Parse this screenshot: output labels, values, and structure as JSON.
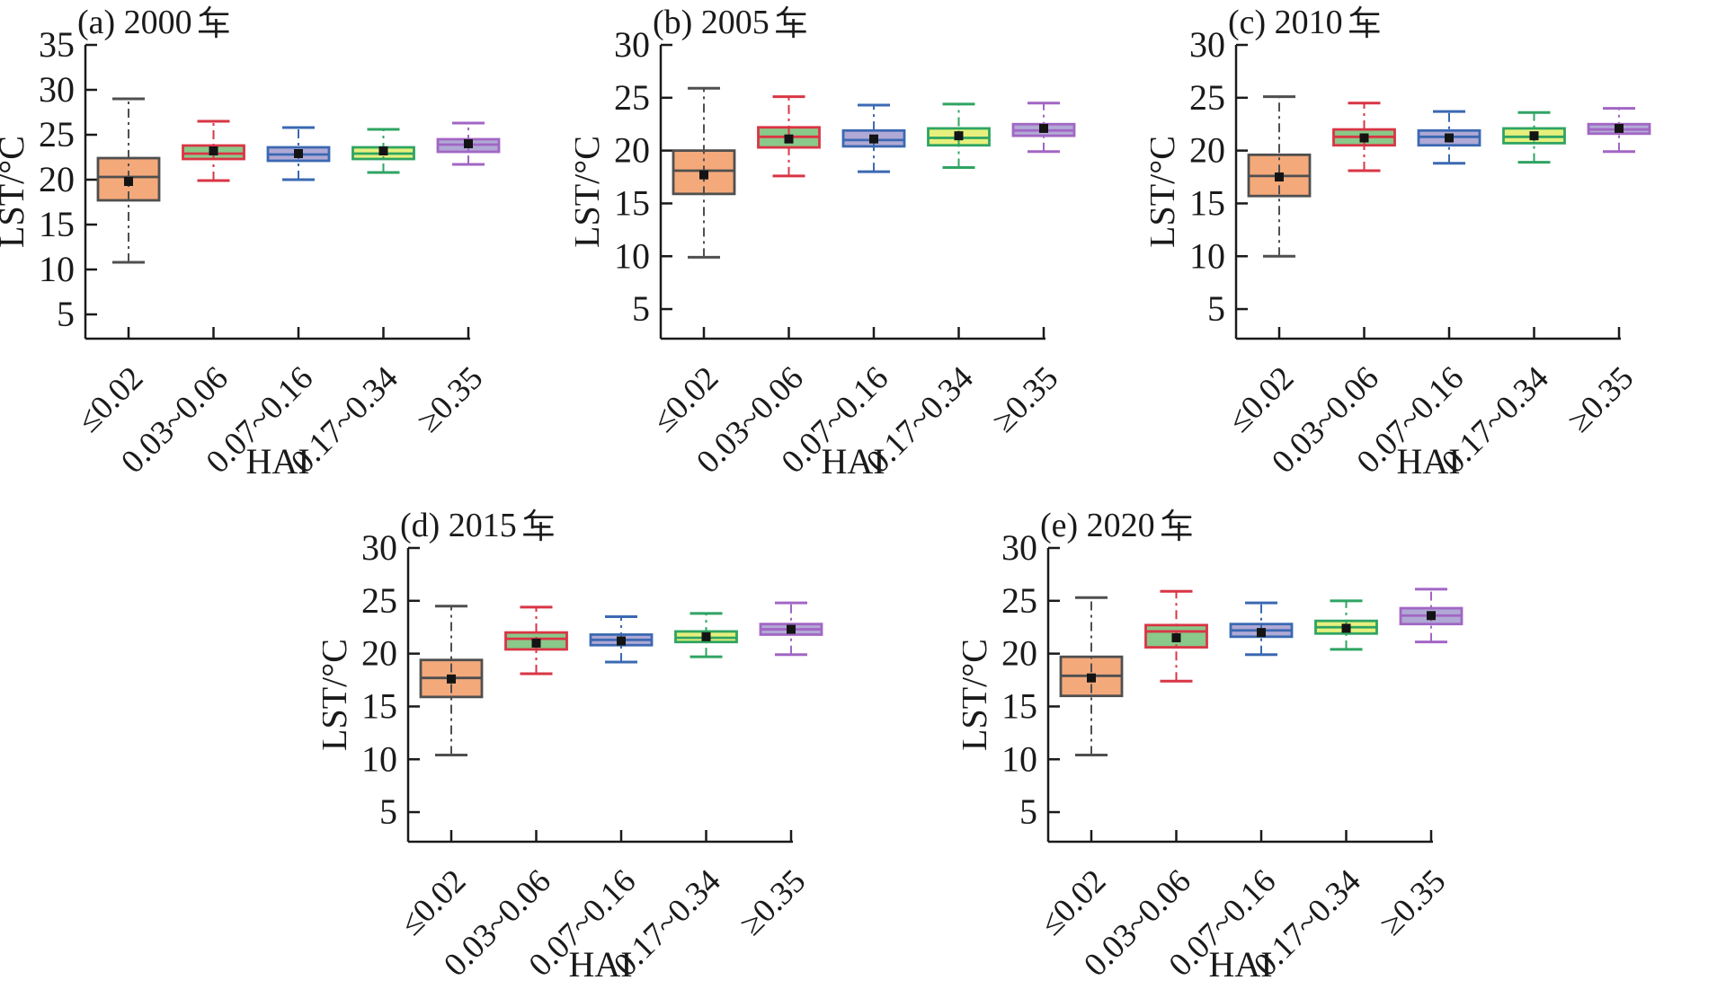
{
  "figure": {
    "background": "#ffffff",
    "text_color": "#1a1a1a",
    "style_notes": {
      "mean_marker": "small black filled square",
      "median": "horizontal line drawn in box border color",
      "whiskers": "dash-dot vertical line with solid end caps",
      "tick_direction": "inward"
    }
  },
  "palette": [
    {
      "name": "orange-box-gray-border",
      "fill": "#F4A97B",
      "stroke": "#4F4F4F"
    },
    {
      "name": "green-box-red-border",
      "fill": "#89C989",
      "stroke": "#D93545"
    },
    {
      "name": "lavender-box-blue-border",
      "fill": "#B0A9D5",
      "stroke": "#3B69B2"
    },
    {
      "name": "yellow-box-green-border",
      "fill": "#E7F07D",
      "stroke": "#2FA463"
    },
    {
      "name": "lavender-box-purple-border",
      "fill": "#B0A9D5",
      "stroke": "#A266C4"
    }
  ],
  "chart_data": [
    {
      "type": "box",
      "panel_label": "(a)",
      "title": "(a) 2000年",
      "xlabel": "HAI",
      "ylabel": "LST/°C",
      "categories": [
        "≤0.02",
        "0.03~0.06",
        "0.07~0.16",
        "0.17~0.34",
        "≥0.35"
      ],
      "ylim": [
        2.3,
        35
      ],
      "yticks": [
        5,
        10,
        15,
        20,
        25,
        30,
        35
      ],
      "boxes": [
        {
          "category": "≤0.02",
          "whisker_low": 10.8,
          "q1": 17.7,
          "median": 20.3,
          "mean": 19.8,
          "q3": 22.4,
          "whisker_high": 29.0
        },
        {
          "category": "0.03~0.06",
          "whisker_low": 19.9,
          "q1": 22.3,
          "median": 22.9,
          "mean": 23.2,
          "q3": 23.8,
          "whisker_high": 26.5
        },
        {
          "category": "0.07~0.16",
          "whisker_low": 20.0,
          "q1": 22.1,
          "median": 22.8,
          "mean": 22.9,
          "q3": 23.6,
          "whisker_high": 25.8
        },
        {
          "category": "0.17~0.34",
          "whisker_low": 20.8,
          "q1": 22.3,
          "median": 22.9,
          "mean": 23.2,
          "q3": 23.6,
          "whisker_high": 25.6
        },
        {
          "category": "≥0.35",
          "whisker_low": 21.7,
          "q1": 23.1,
          "median": 23.9,
          "mean": 24.0,
          "q3": 24.5,
          "whisker_high": 26.3
        }
      ]
    },
    {
      "type": "box",
      "panel_label": "(b)",
      "title": "(b) 2005年",
      "xlabel": "HAI",
      "ylabel": "LST/°C",
      "categories": [
        "≤0.02",
        "0.03~0.06",
        "0.07~0.16",
        "0.17~0.34",
        "≥0.35"
      ],
      "ylim": [
        2.2,
        30
      ],
      "yticks": [
        5,
        10,
        15,
        20,
        25,
        30
      ],
      "boxes": [
        {
          "category": "≤0.02",
          "whisker_low": 9.9,
          "q1": 15.9,
          "median": 18.1,
          "mean": 17.7,
          "q3": 20.0,
          "whisker_high": 25.9
        },
        {
          "category": "0.03~0.06",
          "whisker_low": 17.6,
          "q1": 20.3,
          "median": 21.3,
          "mean": 21.1,
          "q3": 22.2,
          "whisker_high": 25.1
        },
        {
          "category": "0.07~0.16",
          "whisker_low": 18.0,
          "q1": 20.4,
          "median": 21.0,
          "mean": 21.1,
          "q3": 21.9,
          "whisker_high": 24.3
        },
        {
          "category": "0.17~0.34",
          "whisker_low": 18.4,
          "q1": 20.5,
          "median": 21.2,
          "mean": 21.4,
          "q3": 22.1,
          "whisker_high": 24.4
        },
        {
          "category": "≥0.35",
          "whisker_low": 19.9,
          "q1": 21.4,
          "median": 21.9,
          "mean": 22.1,
          "q3": 22.5,
          "whisker_high": 24.5
        }
      ]
    },
    {
      "type": "box",
      "panel_label": "(c)",
      "title": "(c) 2010年",
      "xlabel": "HAI",
      "ylabel": "LST/°C",
      "categories": [
        "≤0.02",
        "0.03~0.06",
        "0.07~0.16",
        "0.17~0.34",
        "≥0.35"
      ],
      "ylim": [
        2.2,
        30
      ],
      "yticks": [
        5,
        10,
        15,
        20,
        25,
        30
      ],
      "boxes": [
        {
          "category": "≤0.02",
          "whisker_low": 10.0,
          "q1": 15.7,
          "median": 17.6,
          "mean": 17.5,
          "q3": 19.6,
          "whisker_high": 25.1
        },
        {
          "category": "0.03~0.06",
          "whisker_low": 18.1,
          "q1": 20.5,
          "median": 21.3,
          "mean": 21.2,
          "q3": 22.0,
          "whisker_high": 24.5
        },
        {
          "category": "0.07~0.16",
          "whisker_low": 18.8,
          "q1": 20.5,
          "median": 21.3,
          "mean": 21.2,
          "q3": 21.9,
          "whisker_high": 23.7
        },
        {
          "category": "0.17~0.34",
          "whisker_low": 18.9,
          "q1": 20.7,
          "median": 21.3,
          "mean": 21.4,
          "q3": 22.1,
          "whisker_high": 23.6
        },
        {
          "category": "≥0.35",
          "whisker_low": 19.9,
          "q1": 21.6,
          "median": 22.0,
          "mean": 22.1,
          "q3": 22.5,
          "whisker_high": 24.0
        }
      ]
    },
    {
      "type": "box",
      "panel_label": "(d)",
      "title": "(d) 2015年",
      "xlabel": "HAI",
      "ylabel": "LST/°C",
      "categories": [
        "≤0.02",
        "0.03~0.06",
        "0.07~0.16",
        "0.17~0.34",
        "≥0.35"
      ],
      "ylim": [
        2.2,
        30
      ],
      "yticks": [
        5,
        10,
        15,
        20,
        25,
        30
      ],
      "boxes": [
        {
          "category": "≤0.02",
          "whisker_low": 10.4,
          "q1": 15.9,
          "median": 17.7,
          "mean": 17.6,
          "q3": 19.4,
          "whisker_high": 24.5
        },
        {
          "category": "0.03~0.06",
          "whisker_low": 18.1,
          "q1": 20.4,
          "median": 21.4,
          "mean": 21.0,
          "q3": 22.0,
          "whisker_high": 24.4
        },
        {
          "category": "0.07~0.16",
          "whisker_low": 19.2,
          "q1": 20.8,
          "median": 21.3,
          "mean": 21.2,
          "q3": 21.8,
          "whisker_high": 23.5
        },
        {
          "category": "0.17~0.34",
          "whisker_low": 19.7,
          "q1": 21.1,
          "median": 21.5,
          "mean": 21.6,
          "q3": 22.1,
          "whisker_high": 23.8
        },
        {
          "category": "≥0.35",
          "whisker_low": 19.9,
          "q1": 21.8,
          "median": 22.3,
          "mean": 22.3,
          "q3": 22.8,
          "whisker_high": 24.8
        }
      ]
    },
    {
      "type": "box",
      "panel_label": "(e)",
      "title": "(e) 2020年",
      "xlabel": "HAI",
      "ylabel": "LST/°C",
      "categories": [
        "≤0.02",
        "0.03~0.06",
        "0.07~0.16",
        "0.17~0.34",
        "≥0.35"
      ],
      "ylim": [
        2.2,
        30
      ],
      "yticks": [
        5,
        10,
        15,
        20,
        25,
        30
      ],
      "boxes": [
        {
          "category": "≤0.02",
          "whisker_low": 10.4,
          "q1": 16.0,
          "median": 17.9,
          "mean": 17.7,
          "q3": 19.7,
          "whisker_high": 25.3
        },
        {
          "category": "0.03~0.06",
          "whisker_low": 17.4,
          "q1": 20.6,
          "median": 22.1,
          "mean": 21.5,
          "q3": 22.7,
          "whisker_high": 25.9
        },
        {
          "category": "0.07~0.16",
          "whisker_low": 19.9,
          "q1": 21.6,
          "median": 22.2,
          "mean": 22.0,
          "q3": 22.8,
          "whisker_high": 24.8
        },
        {
          "category": "0.17~0.34",
          "whisker_low": 20.4,
          "q1": 21.9,
          "median": 22.5,
          "mean": 22.4,
          "q3": 23.1,
          "whisker_high": 25.0
        },
        {
          "category": "≥0.35",
          "whisker_low": 21.1,
          "q1": 22.8,
          "median": 23.6,
          "mean": 23.6,
          "q3": 24.3,
          "whisker_high": 26.1
        }
      ]
    }
  ]
}
